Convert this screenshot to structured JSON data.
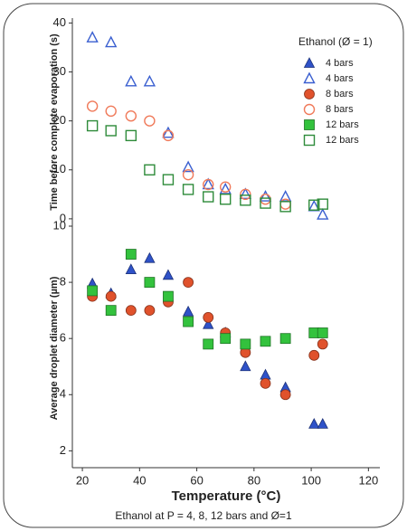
{
  "chart_data": [
    {
      "type": "scatter",
      "y_label": "Time before complete evaporation (s)",
      "legend_title": "Ethanol (Ø = 1)",
      "legend": "upper right",
      "xlim": [
        16.5,
        124
      ],
      "ylim": [
        -1.5,
        41
      ],
      "yticks": [
        0,
        10,
        20,
        30,
        40
      ],
      "series": [
        {
          "name": "4 bars",
          "color": "#3a5fd0",
          "marker": "triangle",
          "filled": false,
          "x": [
            23.5,
            30,
            37,
            43.5,
            50,
            57,
            64,
            70,
            77,
            84,
            91,
            101,
            104
          ],
          "values": [
            37,
            36,
            28,
            28,
            17.5,
            10.5,
            7,
            6,
            5,
            4.5,
            4.5,
            2.5,
            0.8
          ]
        },
        {
          "name": "8 bars",
          "color": "#f07a5a",
          "marker": "circle",
          "filled": false,
          "x": [
            23.5,
            30,
            37,
            43.5,
            50,
            57,
            64,
            70,
            77,
            84,
            91
          ],
          "values": [
            23,
            22,
            21,
            20,
            17,
            9,
            7,
            6.5,
            5,
            4,
            3
          ]
        },
        {
          "name": "12 bars",
          "color": "#2e8b3a",
          "marker": "square",
          "filled": false,
          "x": [
            23.5,
            30,
            37,
            43.5,
            50,
            57,
            64,
            70,
            77,
            84,
            91,
            101,
            104
          ],
          "values": [
            19,
            18,
            17,
            10,
            8,
            6,
            4.5,
            4,
            3.8,
            3.2,
            2.5,
            2.8,
            3
          ]
        }
      ]
    },
    {
      "type": "scatter",
      "y_label": "Average droplet diameter (µm)",
      "x_label": "Temperature (°C)",
      "xlim": [
        16.5,
        124
      ],
      "xticks": [
        20,
        40,
        60,
        80,
        100,
        120
      ],
      "ylim": [
        1.4,
        10
      ],
      "yticks": [
        2,
        4,
        6,
        8,
        10
      ],
      "series": [
        {
          "name": "4 bars",
          "color": "#2f52c8",
          "marker": "triangle",
          "filled": true,
          "x": [
            23.5,
            30,
            37,
            43.5,
            50,
            57,
            64,
            70,
            77,
            84,
            91,
            101,
            104
          ],
          "values": [
            7.95,
            7.6,
            8.45,
            8.85,
            8.25,
            6.95,
            6.5,
            6.2,
            5,
            4.7,
            4.25,
            2.95,
            2.95
          ]
        },
        {
          "name": "8 bars",
          "color": "#e0522c",
          "marker": "circle",
          "filled": true,
          "x": [
            23.5,
            30,
            37,
            43.5,
            50,
            57,
            64,
            70,
            77,
            84,
            91,
            101,
            104
          ],
          "values": [
            7.5,
            7.5,
            7,
            7,
            7.3,
            8,
            6.75,
            6.2,
            5.5,
            4.4,
            4,
            5.4,
            5.8
          ]
        },
        {
          "name": "12 bars",
          "color": "#33c23d",
          "marker": "square",
          "filled": true,
          "x": [
            23.5,
            30,
            37,
            43.5,
            50,
            57,
            64,
            70,
            77,
            84,
            91,
            101,
            104
          ],
          "values": [
            7.7,
            7,
            9,
            8,
            7.5,
            6.6,
            5.8,
            6,
            5.8,
            5.9,
            6,
            6.2,
            6.2
          ]
        }
      ]
    }
  ],
  "caption": "Ethanol at P = 4, 8, 12 bars and Ø=1"
}
